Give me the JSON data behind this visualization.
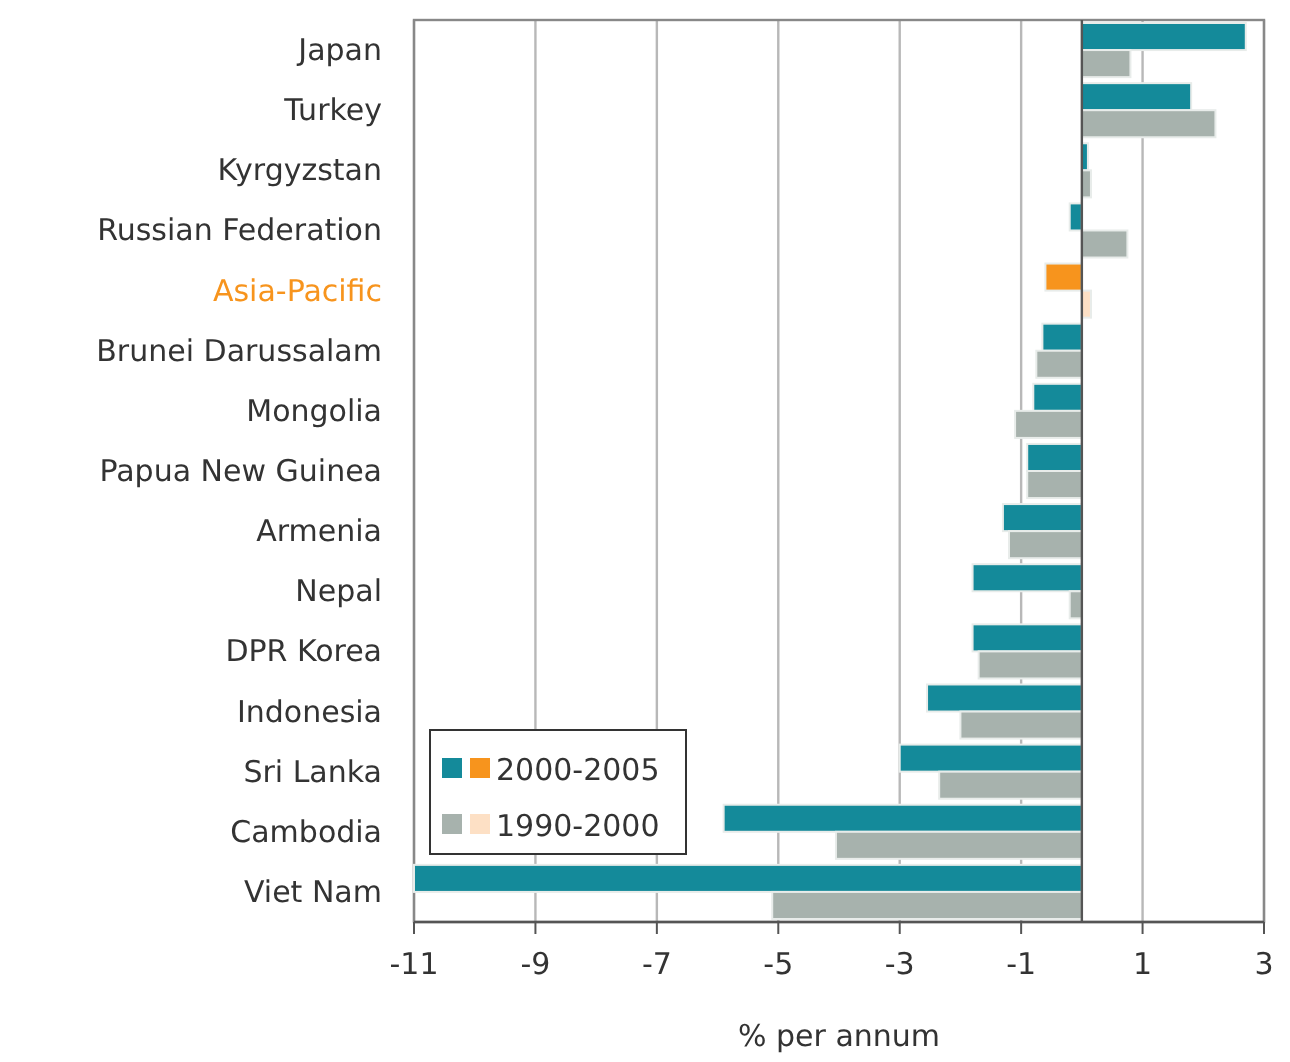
{
  "chart_data": {
    "type": "bar",
    "orientation": "horizontal",
    "xlabel": "% per annum",
    "categories": [
      "Japan",
      "Turkey",
      "Kyrgyzstan",
      "Russian Federation",
      "Asia-Pacific",
      "Brunei Darussalam",
      "Mongolia",
      "Papua New Guinea",
      "Armenia",
      "Nepal",
      "DPR Korea",
      "Indonesia",
      "Sri Lanka",
      "Cambodia",
      "Viet Nam"
    ],
    "series": [
      {
        "name": "2000-2005",
        "color": "#148a9a",
        "colors": [
          "#148a9a",
          "#148a9a",
          "#148a9a",
          "#148a9a",
          "#f7941d",
          "#148a9a",
          "#148a9a",
          "#148a9a",
          "#148a9a",
          "#148a9a",
          "#148a9a",
          "#148a9a",
          "#148a9a",
          "#148a9a",
          "#148a9a"
        ],
        "values": [
          2.7,
          1.8,
          0.1,
          -0.2,
          -0.6,
          -0.65,
          -0.8,
          -0.9,
          -1.3,
          -1.8,
          -1.8,
          -2.55,
          -3.0,
          -5.9,
          -11.0
        ]
      },
      {
        "name": "1990-2000",
        "color": "#a7b2ad",
        "colors": [
          "#a7b2ad",
          "#a7b2ad",
          "#a7b2ad",
          "#a7b2ad",
          "#fde0c5",
          "#a7b2ad",
          "#a7b2ad",
          "#a7b2ad",
          "#a7b2ad",
          "#a7b2ad",
          "#a7b2ad",
          "#a7b2ad",
          "#a7b2ad",
          "#a7b2ad",
          "#a7b2ad"
        ],
        "values": [
          0.8,
          2.2,
          0.15,
          0.75,
          0.15,
          -0.75,
          -1.1,
          -0.9,
          -1.2,
          -0.2,
          -1.7,
          -2.0,
          -2.35,
          -4.05,
          -5.1
        ]
      }
    ],
    "xlim": [
      -11,
      3
    ],
    "xticks": [
      -11,
      -9,
      -7,
      -5,
      -3,
      -1,
      1,
      3
    ],
    "grid": "x",
    "legend": "bottom left"
  }
}
